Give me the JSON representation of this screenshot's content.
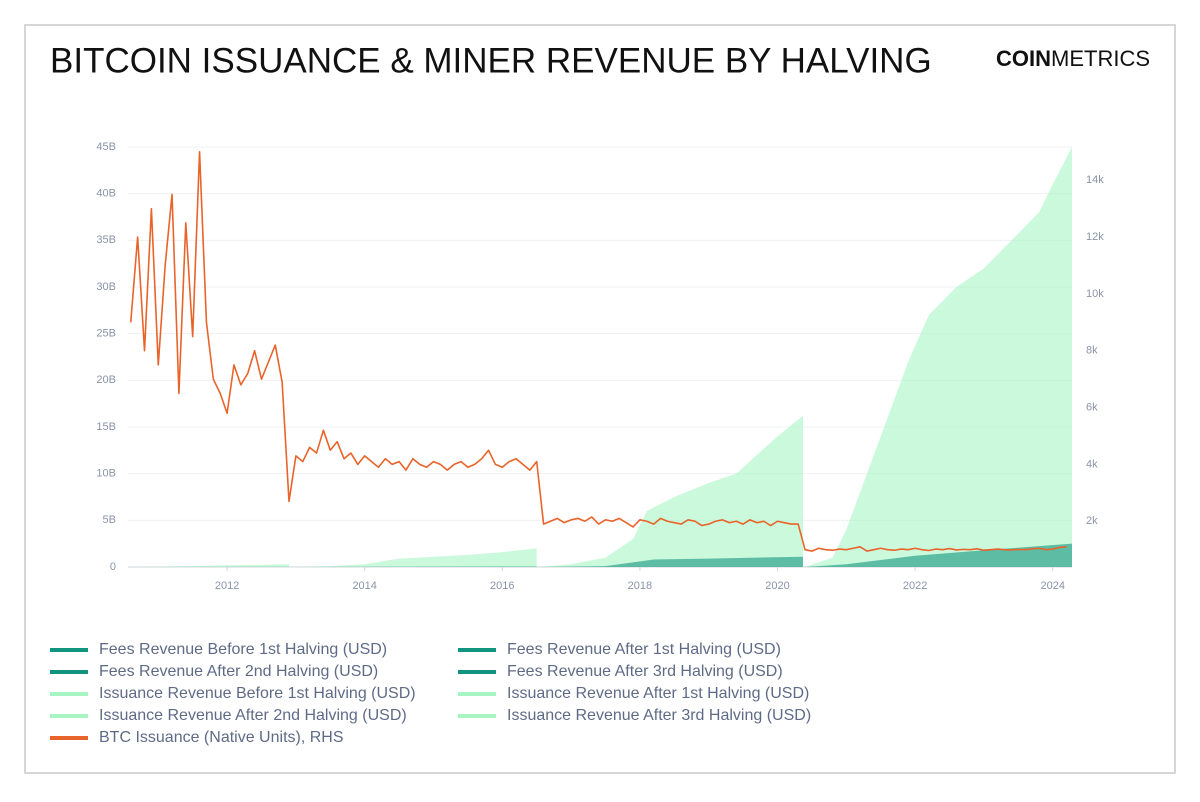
{
  "chart_data": {
    "type": "area-line",
    "title": "BITCOIN ISSUANCE & MINER REVENUE BY HALVING",
    "brand": [
      "COIN",
      "METRICS"
    ],
    "xlim": [
      2010.56,
      2024.28
    ],
    "xticks": [
      2012,
      2014,
      2016,
      2018,
      2020,
      2022,
      2024
    ],
    "ylim": [
      0,
      45000000000
    ],
    "yticks": [
      0,
      {
        "value": 5000000000,
        "label": "5B"
      },
      {
        "value": 10000000000,
        "label": "10B"
      },
      {
        "value": 15000000000,
        "label": "15B"
      },
      {
        "value": 20000000000,
        "label": "20B"
      },
      {
        "value": 25000000000,
        "label": "25B"
      },
      {
        "value": 30000000000,
        "label": "30B"
      },
      {
        "value": 35000000000,
        "label": "35B"
      },
      {
        "value": 40000000000,
        "label": "40B"
      },
      {
        "value": 45000000000,
        "label": "45B"
      }
    ],
    "y2lim": [
      390,
      15170
    ],
    "y2ticks": [
      {
        "value": 2000,
        "label": "2k"
      },
      {
        "value": 4000,
        "label": "4k"
      },
      {
        "value": 6000,
        "label": "6k"
      },
      {
        "value": 8000,
        "label": "8k"
      },
      {
        "value": 10000,
        "label": "10k"
      },
      {
        "value": 12000,
        "label": "12k"
      },
      {
        "value": 14000,
        "label": "14k"
      }
    ],
    "grid": true,
    "series": [
      {
        "name": "Fees Revenue Before 1st Halving (USD)",
        "kind": "area",
        "color": "#12957f",
        "x": [
          2010.6,
          2012.9
        ],
        "values": [
          0,
          10000000
        ]
      },
      {
        "name": "Fees Revenue After 1st Halving (USD)",
        "kind": "area",
        "color": "#12957f",
        "x": [
          2012.9,
          2014.5,
          2016.5
        ],
        "values": [
          0,
          30000000,
          60000000
        ]
      },
      {
        "name": "Fees Revenue After 2nd Halving (USD)",
        "kind": "area",
        "color": "#12957f",
        "x": [
          2016.5,
          2017.5,
          2017.9,
          2018.2,
          2019.0,
          2020.37
        ],
        "values": [
          0,
          100000000,
          500000000,
          800000000,
          900000000,
          1100000000
        ]
      },
      {
        "name": "Fees Revenue After 3rd Halving (USD)",
        "kind": "area",
        "color": "#12957f",
        "x": [
          2020.4,
          2021.0,
          2022.0,
          2023.0,
          2024.28
        ],
        "values": [
          0,
          300000000,
          1200000000,
          1800000000,
          2500000000
        ]
      },
      {
        "name": "Issuance Revenue Before 1st Halving (USD)",
        "kind": "area",
        "color": "#a8f5c4",
        "x": [
          2010.6,
          2011.4,
          2012.2,
          2012.9
        ],
        "values": [
          0,
          100000000,
          200000000,
          300000000
        ]
      },
      {
        "name": "Issuance Revenue After 1st Halving (USD)",
        "kind": "area",
        "color": "#a8f5c4",
        "x": [
          2012.9,
          2013.5,
          2014.0,
          2014.5,
          2015.0,
          2015.5,
          2016.0,
          2016.5
        ],
        "values": [
          0,
          100000000,
          300000000,
          900000000,
          1100000000,
          1300000000,
          1600000000,
          2000000000
        ]
      },
      {
        "name": "Issuance Revenue After 2nd Halving (USD)",
        "kind": "area",
        "color": "#a8f5c4",
        "x": [
          2016.5,
          2017.0,
          2017.5,
          2017.9,
          2018.1,
          2018.5,
          2019.0,
          2019.4,
          2019.7,
          2020.0,
          2020.37
        ],
        "values": [
          0,
          300000000,
          1000000000,
          3000000000,
          6000000000,
          7500000000,
          9000000000,
          10000000000,
          12000000000,
          14000000000,
          16200000000
        ]
      },
      {
        "name": "Issuance Revenue After 3rd Halving (USD)",
        "kind": "area",
        "color": "#a8f5c4",
        "x": [
          2020.4,
          2020.8,
          2021.0,
          2021.3,
          2021.5,
          2021.9,
          2022.2,
          2022.6,
          2023.0,
          2023.4,
          2023.8,
          2024.0,
          2024.28
        ],
        "values": [
          0,
          1000000000,
          4000000000,
          10000000000,
          14000000000,
          22000000000,
          27000000000,
          30000000000,
          32000000000,
          35000000000,
          38000000000,
          41000000000,
          45000000000
        ]
      },
      {
        "name": "BTC Issuance (Native Units), RHS",
        "kind": "line",
        "axis": "y2",
        "color": "#e8642a",
        "x": [
          2010.6,
          2010.7,
          2010.8,
          2010.9,
          2011.0,
          2011.1,
          2011.2,
          2011.3,
          2011.4,
          2011.5,
          2011.6,
          2011.7,
          2011.8,
          2011.9,
          2012.0,
          2012.1,
          2012.2,
          2012.3,
          2012.4,
          2012.5,
          2012.6,
          2012.7,
          2012.8,
          2012.9,
          2013.0,
          2013.1,
          2013.2,
          2013.3,
          2013.4,
          2013.5,
          2013.6,
          2013.7,
          2013.8,
          2013.9,
          2014.0,
          2014.1,
          2014.2,
          2014.3,
          2014.4,
          2014.5,
          2014.6,
          2014.7,
          2014.8,
          2014.9,
          2015.0,
          2015.1,
          2015.2,
          2015.3,
          2015.4,
          2015.5,
          2015.6,
          2015.7,
          2015.8,
          2015.9,
          2016.0,
          2016.1,
          2016.2,
          2016.3,
          2016.4,
          2016.5,
          2016.6,
          2016.7,
          2016.8,
          2016.9,
          2017.0,
          2017.1,
          2017.2,
          2017.3,
          2017.4,
          2017.5,
          2017.6,
          2017.7,
          2017.8,
          2017.9,
          2018.0,
          2018.1,
          2018.2,
          2018.3,
          2018.4,
          2018.5,
          2018.6,
          2018.7,
          2018.8,
          2018.9,
          2019.0,
          2019.1,
          2019.2,
          2019.3,
          2019.4,
          2019.5,
          2019.6,
          2019.7,
          2019.8,
          2019.9,
          2020.0,
          2020.1,
          2020.2,
          2020.3,
          2020.4,
          2020.5,
          2020.6,
          2020.7,
          2020.8,
          2020.9,
          2021.0,
          2021.1,
          2021.2,
          2021.3,
          2021.4,
          2021.5,
          2021.6,
          2021.7,
          2021.8,
          2021.9,
          2022.0,
          2022.1,
          2022.2,
          2022.3,
          2022.4,
          2022.5,
          2022.6,
          2022.7,
          2022.8,
          2022.9,
          2023.0,
          2023.1,
          2023.2,
          2023.3,
          2023.4,
          2023.5,
          2023.6,
          2023.7,
          2023.8,
          2023.9,
          2024.0,
          2024.1,
          2024.2
        ],
        "values": [
          9000,
          12000,
          8000,
          13000,
          7500,
          11000,
          13500,
          6500,
          12500,
          8500,
          15000,
          9000,
          7000,
          6500,
          5800,
          7500,
          6800,
          7200,
          8000,
          7000,
          7600,
          8200,
          6900,
          2700,
          4300,
          4100,
          4600,
          4400,
          5200,
          4500,
          4800,
          4200,
          4400,
          4000,
          4300,
          4100,
          3900,
          4200,
          4000,
          4100,
          3800,
          4200,
          4000,
          3900,
          4100,
          4000,
          3800,
          4000,
          4100,
          3900,
          4000,
          4200,
          4500,
          4000,
          3900,
          4100,
          4200,
          4000,
          3800,
          4100,
          1900,
          2000,
          2100,
          1950,
          2050,
          2100,
          2000,
          2150,
          1900,
          2050,
          2000,
          2100,
          1950,
          1800,
          2050,
          2000,
          1900,
          2100,
          2000,
          1950,
          1900,
          2050,
          2000,
          1850,
          1900,
          2000,
          2050,
          1950,
          2000,
          1900,
          2050,
          1950,
          2000,
          1850,
          2000,
          1950,
          1900,
          1900,
          1000,
          950,
          1050,
          1000,
          980,
          1020,
          1000,
          1050,
          1100,
          950,
          1000,
          1050,
          1000,
          980,
          1020,
          1000,
          1050,
          1000,
          970,
          1020,
          1000,
          1040,
          990,
          1010,
          1000,
          1030,
          980,
          1000,
          1020,
          1000,
          990,
          1010,
          1000,
          1030,
          1050,
          1000,
          1020,
          1080,
          1100
        ]
      }
    ]
  }
}
